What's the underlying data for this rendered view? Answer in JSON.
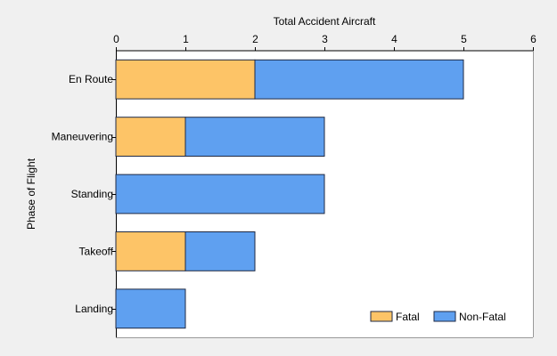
{
  "chart_data": {
    "type": "bar",
    "orientation": "horizontal",
    "stacked": true,
    "xlabel": "Total Accident Aircraft",
    "ylabel": "Phase of Flight",
    "xlim": [
      0,
      6
    ],
    "xticks": [
      "0",
      "1",
      "2",
      "3",
      "4",
      "5",
      "6"
    ],
    "categories": [
      "En Route",
      "Maneuvering",
      "Standing",
      "Takeoff",
      "Landing"
    ],
    "series": [
      {
        "name": "Fatal",
        "color": "#fdc467",
        "values": [
          2,
          1,
          0,
          1,
          0
        ]
      },
      {
        "name": "Non-Fatal",
        "color": "#5fa0f0",
        "values": [
          3,
          2,
          3,
          1,
          1
        ]
      }
    ],
    "grid": false,
    "legend": "bottom-right",
    "x_axis_position": "top"
  }
}
